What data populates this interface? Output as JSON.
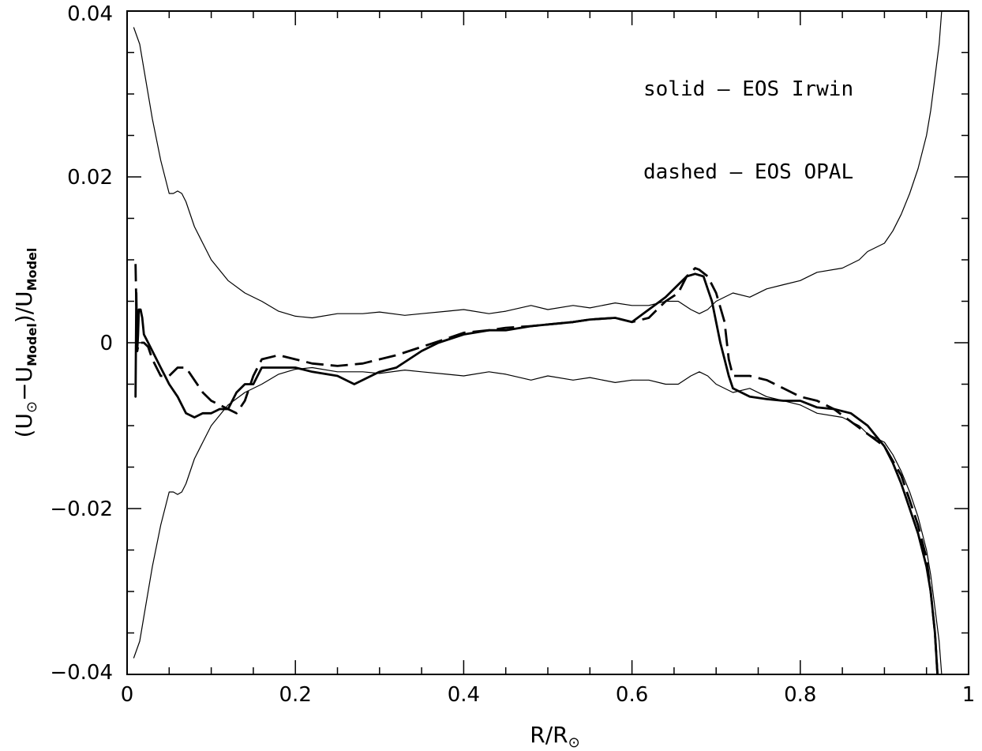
{
  "chart_data": {
    "type": "line",
    "title": "",
    "xlabel": {
      "base": "R/R",
      "subscript": "⊙"
    },
    "ylabel": {
      "open": "(U",
      "sub_sun": "⊙",
      "minus": "−U",
      "sub_model1": "Model",
      "close": ")/U",
      "sub_model2": "Model"
    },
    "xlim": [
      0,
      1
    ],
    "ylim": [
      -0.04,
      0.04
    ],
    "x_ticks": [
      {
        "value": 0,
        "label": "0"
      },
      {
        "value": 0.2,
        "label": "0.2"
      },
      {
        "value": 0.4,
        "label": "0.4"
      },
      {
        "value": 0.6,
        "label": "0.6"
      },
      {
        "value": 0.8,
        "label": "0.8"
      },
      {
        "value": 1,
        "label": "1"
      }
    ],
    "y_ticks": [
      {
        "value": -0.04,
        "label": "−0.04"
      },
      {
        "value": -0.02,
        "label": "−0.02"
      },
      {
        "value": 0,
        "label": "0"
      },
      {
        "value": 0.02,
        "label": "0.02"
      },
      {
        "value": 0.04,
        "label": "0.04"
      }
    ],
    "x_minor_step": 0.05,
    "y_minor_step": 0.005,
    "grid": false,
    "legend_placement": "top-right",
    "annotations": [
      {
        "text": "solid – EOS Irwin",
        "position": "upper-right"
      },
      {
        "text": "dashed – EOS OPAL",
        "position": "upper-right"
      }
    ],
    "series": [
      {
        "role": "error-envelope-upper",
        "style": "thin",
        "x": [
          0.008,
          0.015,
          0.02,
          0.03,
          0.04,
          0.05,
          0.055,
          0.06,
          0.065,
          0.07,
          0.08,
          0.09,
          0.1,
          0.12,
          0.14,
          0.16,
          0.18,
          0.2,
          0.22,
          0.25,
          0.28,
          0.3,
          0.33,
          0.35,
          0.38,
          0.4,
          0.43,
          0.45,
          0.48,
          0.5,
          0.53,
          0.55,
          0.58,
          0.6,
          0.62,
          0.64,
          0.655,
          0.67,
          0.68,
          0.69,
          0.7,
          0.72,
          0.74,
          0.76,
          0.78,
          0.8,
          0.82,
          0.85,
          0.87,
          0.88,
          0.9,
          0.91,
          0.92,
          0.93,
          0.94,
          0.95,
          0.955,
          0.96,
          0.965,
          0.968
        ],
        "y": [
          0.038,
          0.036,
          0.033,
          0.027,
          0.022,
          0.018,
          0.018,
          0.0183,
          0.018,
          0.017,
          0.014,
          0.012,
          0.01,
          0.0075,
          0.006,
          0.005,
          0.0038,
          0.0032,
          0.003,
          0.0035,
          0.0035,
          0.0037,
          0.0033,
          0.0035,
          0.0038,
          0.004,
          0.0035,
          0.0038,
          0.0045,
          0.004,
          0.0045,
          0.0042,
          0.0048,
          0.0045,
          0.0045,
          0.005,
          0.005,
          0.004,
          0.0035,
          0.004,
          0.005,
          0.006,
          0.0055,
          0.0065,
          0.007,
          0.0075,
          0.0085,
          0.009,
          0.01,
          0.011,
          0.012,
          0.0135,
          0.0155,
          0.018,
          0.021,
          0.025,
          0.028,
          0.032,
          0.036,
          0.04
        ]
      },
      {
        "role": "error-envelope-lower",
        "style": "thin",
        "x": [
          0.008,
          0.015,
          0.02,
          0.03,
          0.04,
          0.05,
          0.055,
          0.06,
          0.065,
          0.07,
          0.08,
          0.09,
          0.1,
          0.12,
          0.14,
          0.16,
          0.18,
          0.2,
          0.22,
          0.25,
          0.28,
          0.3,
          0.33,
          0.35,
          0.38,
          0.4,
          0.43,
          0.45,
          0.48,
          0.5,
          0.53,
          0.55,
          0.58,
          0.6,
          0.62,
          0.64,
          0.655,
          0.67,
          0.68,
          0.69,
          0.7,
          0.72,
          0.74,
          0.76,
          0.78,
          0.8,
          0.82,
          0.85,
          0.87,
          0.88,
          0.9,
          0.91,
          0.92,
          0.93,
          0.94,
          0.95,
          0.955,
          0.96,
          0.965,
          0.968
        ],
        "y": [
          -0.038,
          -0.036,
          -0.033,
          -0.027,
          -0.022,
          -0.018,
          -0.018,
          -0.0183,
          -0.018,
          -0.017,
          -0.014,
          -0.012,
          -0.01,
          -0.0075,
          -0.006,
          -0.005,
          -0.0038,
          -0.0032,
          -0.003,
          -0.0035,
          -0.0035,
          -0.0037,
          -0.0033,
          -0.0035,
          -0.0038,
          -0.004,
          -0.0035,
          -0.0038,
          -0.0045,
          -0.004,
          -0.0045,
          -0.0042,
          -0.0048,
          -0.0045,
          -0.0045,
          -0.005,
          -0.005,
          -0.004,
          -0.0035,
          -0.004,
          -0.005,
          -0.006,
          -0.0055,
          -0.0065,
          -0.007,
          -0.0075,
          -0.0085,
          -0.009,
          -0.01,
          -0.011,
          -0.012,
          -0.0135,
          -0.0155,
          -0.018,
          -0.021,
          -0.025,
          -0.028,
          -0.032,
          -0.036,
          -0.04
        ]
      },
      {
        "role": "eos-irwin",
        "style": "solid",
        "x": [
          0.01,
          0.011,
          0.012,
          0.013,
          0.014,
          0.016,
          0.018,
          0.02,
          0.025,
          0.03,
          0.035,
          0.04,
          0.045,
          0.05,
          0.06,
          0.07,
          0.08,
          0.09,
          0.1,
          0.11,
          0.12,
          0.13,
          0.14,
          0.15,
          0.16,
          0.18,
          0.2,
          0.22,
          0.25,
          0.27,
          0.3,
          0.32,
          0.35,
          0.37,
          0.4,
          0.43,
          0.45,
          0.48,
          0.5,
          0.53,
          0.55,
          0.58,
          0.6,
          0.62,
          0.64,
          0.655,
          0.665,
          0.675,
          0.685,
          0.69,
          0.695,
          0.7,
          0.705,
          0.71,
          0.715,
          0.72,
          0.74,
          0.76,
          0.78,
          0.8,
          0.82,
          0.84,
          0.86,
          0.88,
          0.9,
          0.91,
          0.92,
          0.93,
          0.94,
          0.95,
          0.955,
          0.96,
          0.963
        ],
        "y": [
          -0.0065,
          0.006,
          -0.001,
          0.001,
          0.004,
          0.004,
          0.003,
          0.001,
          0.0,
          -0.001,
          -0.002,
          -0.003,
          -0.004,
          -0.005,
          -0.0065,
          -0.0085,
          -0.009,
          -0.0085,
          -0.0085,
          -0.008,
          -0.008,
          -0.006,
          -0.005,
          -0.005,
          -0.003,
          -0.003,
          -0.003,
          -0.0035,
          -0.004,
          -0.005,
          -0.0035,
          -0.003,
          -0.001,
          0.0,
          0.001,
          0.0015,
          0.0015,
          0.002,
          0.0022,
          0.0025,
          0.0028,
          0.003,
          0.0025,
          0.004,
          0.0055,
          0.007,
          0.008,
          0.0083,
          0.008,
          0.0065,
          0.005,
          0.0025,
          0.0,
          -0.002,
          -0.004,
          -0.0055,
          -0.0065,
          -0.0068,
          -0.007,
          -0.007,
          -0.0078,
          -0.008,
          -0.0085,
          -0.01,
          -0.0125,
          -0.0145,
          -0.017,
          -0.02,
          -0.023,
          -0.027,
          -0.03,
          -0.035,
          -0.04
        ]
      },
      {
        "role": "eos-opal",
        "style": "dashed",
        "x": [
          0.01,
          0.012,
          0.014,
          0.016,
          0.02,
          0.025,
          0.03,
          0.035,
          0.04,
          0.05,
          0.06,
          0.07,
          0.08,
          0.09,
          0.1,
          0.11,
          0.12,
          0.13,
          0.14,
          0.15,
          0.16,
          0.18,
          0.2,
          0.22,
          0.25,
          0.28,
          0.3,
          0.32,
          0.35,
          0.38,
          0.4,
          0.43,
          0.45,
          0.48,
          0.5,
          0.53,
          0.55,
          0.58,
          0.6,
          0.62,
          0.64,
          0.655,
          0.665,
          0.675,
          0.68,
          0.69,
          0.7,
          0.71,
          0.715,
          0.72,
          0.74,
          0.76,
          0.78,
          0.8,
          0.82,
          0.84,
          0.86,
          0.88,
          0.9,
          0.92,
          0.93,
          0.94,
          0.95,
          0.955,
          0.96,
          0.963
        ],
        "y": [
          0.0095,
          -0.001,
          0.0,
          0.0,
          0.0,
          -0.0005,
          -0.002,
          -0.003,
          -0.004,
          -0.004,
          -0.003,
          -0.003,
          -0.0045,
          -0.006,
          -0.007,
          -0.0075,
          -0.008,
          -0.0085,
          -0.007,
          -0.004,
          -0.002,
          -0.0015,
          -0.002,
          -0.0025,
          -0.0028,
          -0.0025,
          -0.002,
          -0.0015,
          -0.0005,
          0.0005,
          0.0012,
          0.0015,
          0.0018,
          0.002,
          0.0022,
          0.0025,
          0.0028,
          0.003,
          0.0025,
          0.003,
          0.005,
          0.006,
          0.008,
          0.009,
          0.0088,
          0.008,
          0.006,
          0.0025,
          -0.002,
          -0.004,
          -0.004,
          -0.0045,
          -0.0055,
          -0.0065,
          -0.007,
          -0.008,
          -0.0095,
          -0.011,
          -0.0125,
          -0.016,
          -0.019,
          -0.022,
          -0.026,
          -0.03,
          -0.035,
          -0.04
        ]
      }
    ]
  }
}
